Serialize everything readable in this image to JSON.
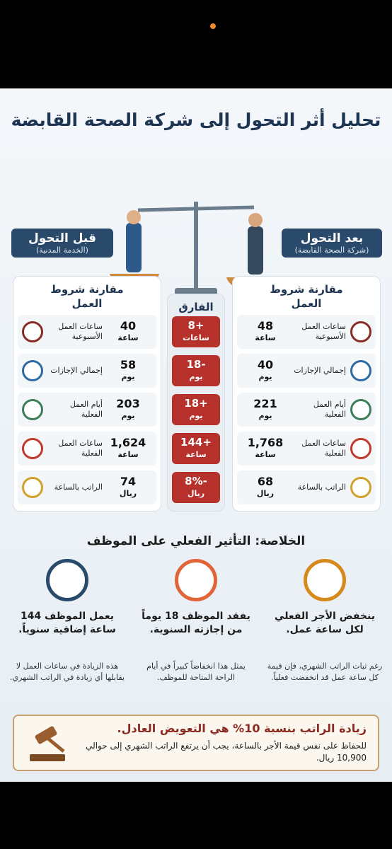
{
  "title": "تحليل أثر التحول إلى شركة الصحة القابضة",
  "after": {
    "label": "بعد التحول",
    "sub": "(شركة الصحة القابضة)",
    "heading": "مقارنة شروط العمل",
    "rows": [
      {
        "name": "ساعات العمل الأسبوعية",
        "value": "48",
        "unit": "ساعة"
      },
      {
        "name": "إجمالي الإجازات",
        "value": "40",
        "unit": "يوم"
      },
      {
        "name": "أيام العمل الفعلية",
        "value": "221",
        "unit": "يوم"
      },
      {
        "name": "ساعات العمل الفعلية",
        "value": "1,768",
        "unit": "ساعة"
      },
      {
        "name": "الراتب بالساعة",
        "value": "68",
        "unit": "ريال"
      }
    ]
  },
  "before": {
    "label": "قبل التحول",
    "sub": "(الخدمة المدنية)",
    "heading": "مقارنة شروط العمل",
    "rows": [
      {
        "name": "ساعات العمل الأسبوعية",
        "value": "40",
        "unit": "ساعة"
      },
      {
        "name": "إجمالي الإجازات",
        "value": "58",
        "unit": "يوم"
      },
      {
        "name": "أيام العمل الفعلية",
        "value": "203",
        "unit": "يوم"
      },
      {
        "name": "ساعات العمل الفعلية",
        "value": "1,624",
        "unit": "ساعة"
      },
      {
        "name": "الراتب بالساعة",
        "value": "74",
        "unit": "ريال"
      }
    ]
  },
  "diff": {
    "heading": "الفارق",
    "rows": [
      {
        "value": "+8",
        "unit": "ساعات"
      },
      {
        "value": "-18",
        "unit": "يوم"
      },
      {
        "value": "+18",
        "unit": "يوم"
      },
      {
        "value": "+144",
        "unit": "ساعة"
      },
      {
        "value": "-8%",
        "unit": "ريال"
      }
    ]
  },
  "summary": {
    "title": "الخلاصة: التأثير الفعلي على الموظف",
    "items": [
      {
        "title": "ينخفض الأجر الفعلي لكل ساعة عمل.",
        "text": "رغم ثبات الراتب الشهري، فإن قيمة كل ساعة عمل قد انخفضت فعلياً."
      },
      {
        "title": "يفقد الموظف 18 يوماً من إجازته السنوية.",
        "text": "يمثل هذا انخفاضاً كبيراً في أيام الراحة المتاحة للموظف."
      },
      {
        "title": "يعمل الموظف 144 ساعة إضافية سنوياً.",
        "text": "هذه الزيادة في ساعات العمل لا يقابلها أي زيادة في الراتب الشهري."
      }
    ]
  },
  "conclusion": {
    "title": "زيادة الراتب بنسبة 10% هي التعويض العادل.",
    "text": "للحفاظ على نفس قيمة الأجر بالساعة، يجب أن يرتفع الراتب الشهري إلى حوالي 10,900 ريال."
  }
}
